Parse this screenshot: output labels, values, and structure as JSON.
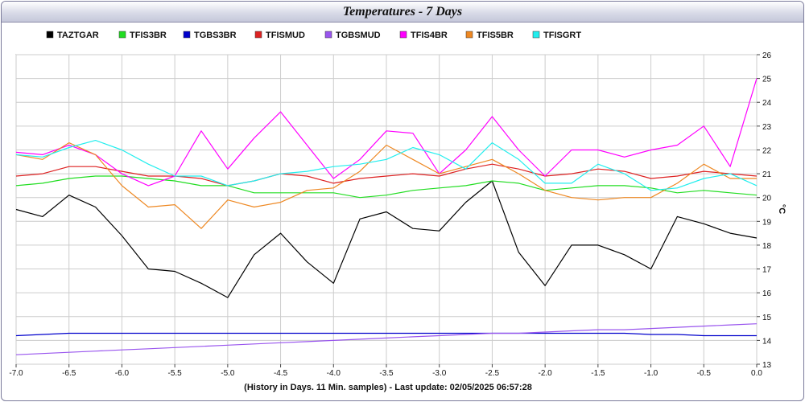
{
  "chart_data": {
    "type": "line",
    "title": "Temperatures - 7 Days",
    "xlabel": "(History in Days. 11 Min. samples) - Last update: 02/05/2025 06:57:28",
    "ylabel": "°C",
    "xlim": [
      -7.0,
      0.0
    ],
    "ylim": [
      13,
      26
    ],
    "x_ticks": [
      "-7.0",
      "-6.5",
      "-6.0",
      "-5.5",
      "-5.0",
      "-4.5",
      "-4.0",
      "-3.5",
      "-3.0",
      "-2.5",
      "-2.0",
      "-1.5",
      "-1.0",
      "-0.5",
      "0.0"
    ],
    "y_ticks": [
      "13",
      "14",
      "15",
      "16",
      "17",
      "18",
      "19",
      "20",
      "21",
      "22",
      "23",
      "24",
      "25",
      "26"
    ],
    "grid": true,
    "legend_position": "top",
    "x": [
      -7.0,
      -6.75,
      -6.5,
      -6.25,
      -6.0,
      -5.75,
      -5.5,
      -5.25,
      -5.0,
      -4.75,
      -4.5,
      -4.25,
      -4.0,
      -3.75,
      -3.5,
      -3.25,
      -3.0,
      -2.75,
      -2.5,
      -2.25,
      -2.0,
      -1.75,
      -1.5,
      -1.25,
      -1.0,
      -0.75,
      -0.5,
      -0.25,
      0.0
    ],
    "series": [
      {
        "name": "TAZTGAR",
        "color": "#000000",
        "values": [
          19.5,
          19.2,
          20.1,
          19.6,
          18.4,
          17.0,
          16.9,
          16.4,
          15.8,
          17.6,
          18.5,
          17.3,
          16.4,
          19.1,
          19.4,
          18.7,
          18.6,
          19.8,
          20.7,
          17.7,
          16.3,
          18.0,
          18.0,
          17.6,
          17.0,
          19.2,
          18.9,
          18.5,
          18.3
        ]
      },
      {
        "name": "TFIS3BR",
        "color": "#22dd22",
        "values": [
          20.5,
          20.6,
          20.8,
          20.9,
          20.9,
          20.8,
          20.7,
          20.5,
          20.5,
          20.2,
          20.2,
          20.2,
          20.2,
          20.0,
          20.1,
          20.3,
          20.4,
          20.5,
          20.7,
          20.6,
          20.3,
          20.4,
          20.5,
          20.5,
          20.4,
          20.2,
          20.3,
          20.2,
          20.1
        ]
      },
      {
        "name": "TGBS3BR",
        "color": "#0000cc",
        "values": [
          14.2,
          14.25,
          14.3,
          14.3,
          14.3,
          14.3,
          14.3,
          14.3,
          14.3,
          14.3,
          14.3,
          14.3,
          14.3,
          14.3,
          14.3,
          14.3,
          14.3,
          14.3,
          14.3,
          14.3,
          14.3,
          14.3,
          14.3,
          14.3,
          14.25,
          14.25,
          14.2,
          14.2,
          14.2
        ]
      },
      {
        "name": "TFISMUD",
        "color": "#dd2222",
        "values": [
          20.9,
          21.0,
          21.3,
          21.3,
          21.1,
          20.9,
          20.9,
          20.8,
          20.5,
          20.7,
          21.0,
          20.9,
          20.6,
          20.8,
          20.9,
          21.0,
          20.9,
          21.2,
          21.4,
          21.2,
          20.9,
          21.0,
          21.2,
          21.1,
          20.8,
          20.9,
          21.1,
          21.0,
          20.9
        ]
      },
      {
        "name": "TGBSMUD",
        "color": "#9955ee",
        "values": [
          13.4,
          13.45,
          13.5,
          13.55,
          13.6,
          13.65,
          13.7,
          13.75,
          13.8,
          13.85,
          13.9,
          13.95,
          14.0,
          14.05,
          14.1,
          14.15,
          14.2,
          14.25,
          14.3,
          14.3,
          14.35,
          14.4,
          14.45,
          14.45,
          14.5,
          14.55,
          14.6,
          14.65,
          14.7
        ]
      },
      {
        "name": "TFIS4BR",
        "color": "#ff00ff",
        "values": [
          21.9,
          21.8,
          22.2,
          21.8,
          21.0,
          20.5,
          20.9,
          22.8,
          21.2,
          22.5,
          23.6,
          22.2,
          20.8,
          21.6,
          22.8,
          22.7,
          21.0,
          22.0,
          23.4,
          22.0,
          20.9,
          22.0,
          22.0,
          21.7,
          22.0,
          22.2,
          23.0,
          21.3,
          25.0
        ]
      },
      {
        "name": "TFIS5BR",
        "color": "#ee8822",
        "values": [
          21.8,
          21.6,
          22.3,
          21.8,
          20.5,
          19.6,
          19.7,
          18.7,
          19.9,
          19.6,
          19.8,
          20.3,
          20.4,
          21.1,
          22.2,
          21.6,
          21.0,
          21.3,
          21.6,
          21.0,
          20.3,
          20.0,
          19.9,
          20.0,
          20.0,
          20.6,
          21.4,
          20.8,
          20.8
        ]
      },
      {
        "name": "TFISGRT",
        "color": "#22eeee",
        "values": [
          21.8,
          21.7,
          22.1,
          22.4,
          22.0,
          21.4,
          20.9,
          20.9,
          20.5,
          20.7,
          21.0,
          21.1,
          21.3,
          21.4,
          21.6,
          22.1,
          21.8,
          21.2,
          22.3,
          21.6,
          20.6,
          20.6,
          21.4,
          21.0,
          20.3,
          20.4,
          20.8,
          21.0,
          20.5
        ]
      }
    ]
  }
}
